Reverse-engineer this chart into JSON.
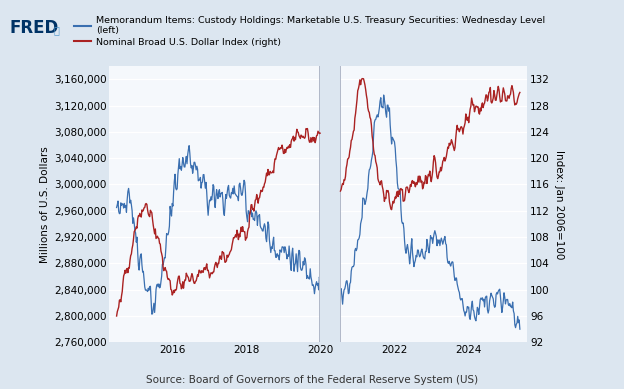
{
  "legend_line1": "Memorandum Items: Custody Holdings: Marketable U.S. Treasury Securities: Wednesday Level\n(left)",
  "legend_line2": "Nominal Broad U.S. Dollar Index (right)",
  "ylabel_left": "Millions of U.S. Dollars",
  "ylabel_right": "Index: Jan 2006=100",
  "source": "Source: Board of Governors of the Federal Reserve System (US)",
  "ylim_left": [
    2760000,
    3180000
  ],
  "ylim_right": [
    92,
    134
  ],
  "yticks_left": [
    2760000,
    2800000,
    2840000,
    2880000,
    2920000,
    2960000,
    3000000,
    3040000,
    3080000,
    3120000,
    3160000
  ],
  "yticks_right": [
    92,
    96,
    100,
    104,
    108,
    112,
    116,
    120,
    124,
    128,
    132
  ],
  "bg_color": "#dce6f0",
  "plot_bg_color": "#f5f8fc",
  "blue_color": "#3a6fb0",
  "red_color": "#aa2222",
  "gap_start": 2019.97,
  "gap_end": 2020.55,
  "xlim": [
    2014.3,
    2025.6
  ],
  "xticks": [
    2016,
    2018,
    2020,
    2022,
    2024
  ]
}
